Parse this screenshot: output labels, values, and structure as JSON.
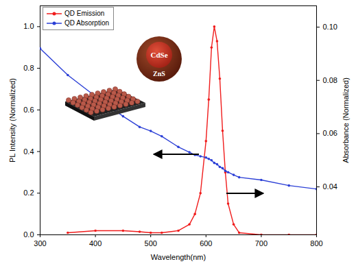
{
  "chart_data": {
    "type": "line",
    "x": [
      300,
      350,
      400,
      450,
      480,
      500,
      520,
      550,
      570,
      580,
      590,
      600,
      605,
      610,
      615,
      620,
      625,
      630,
      635,
      640,
      650,
      660,
      700,
      750,
      800
    ],
    "xlim": [
      300,
      800
    ],
    "xticks": [
      300,
      400,
      500,
      600,
      700,
      800
    ],
    "ylim": [
      0,
      1.1
    ],
    "yticks": [
      {
        "value": 0,
        "label": "0.0"
      },
      0.2,
      0.4,
      0.6,
      0.8,
      {
        "value": 1,
        "label": "1.0"
      }
    ],
    "y2lim": [
      0.022,
      0.108
    ],
    "y2ticks": [
      0.04,
      0.06,
      0.08,
      {
        "value": 0.1,
        "label": "0.10"
      }
    ],
    "x_label": "Wavelength(nm)",
    "y_label": "PL Intensity (Normalized)",
    "y2_label": "Absorbance (Normalized)",
    "series": [
      {
        "name": "QD Emission",
        "color": "#f01c1c",
        "marker": "circle",
        "line_style": "solid",
        "values": [
          null,
          0.01,
          0.02,
          0.02,
          0.015,
          0.01,
          0.01,
          0.02,
          0.05,
          0.1,
          0.2,
          0.45,
          0.65,
          0.9,
          1.0,
          0.93,
          0.75,
          0.5,
          0.3,
          0.15,
          0.05,
          0.01,
          0,
          0,
          0
        ]
      },
      {
        "name": "QD Absorption",
        "color": "#2b3fd6",
        "marker": "circle",
        "line_style": "solid",
        "axis": "y2",
        "values": [
          0.092,
          0.082,
          0.074,
          0.0665,
          0.0625,
          0.061,
          0.059,
          0.055,
          0.053,
          0.052,
          0.0515,
          0.051,
          0.0505,
          0.05,
          0.049,
          0.0485,
          0.0475,
          0.047,
          0.046,
          0.0455,
          0.0445,
          0.0436,
          0.0426,
          0.0405,
          0.0392
        ]
      }
    ],
    "legend": "upper left",
    "annotations": [
      "CdSe",
      "ZnS"
    ],
    "grid": false
  }
}
